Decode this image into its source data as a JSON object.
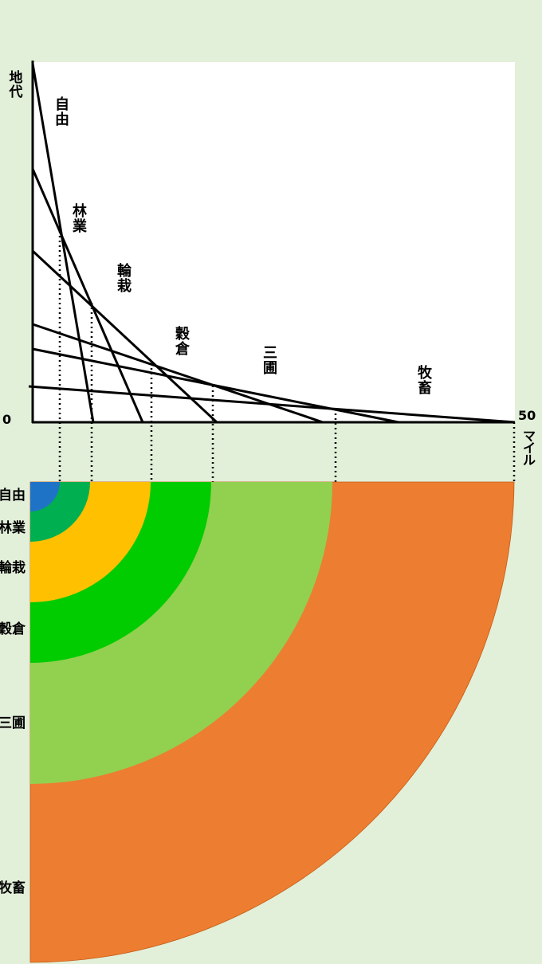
{
  "axis": {
    "y_label": "地代",
    "x_label": "マイル",
    "origin_label": "0",
    "x_max_label": "50"
  },
  "crops": [
    {
      "id": "jiyu",
      "label": "自由",
      "color": "#1f73c7"
    },
    {
      "id": "ringyo",
      "label": "林業",
      "color": "#00b050"
    },
    {
      "id": "rinsai",
      "label": "輪栽",
      "color": "#ffc000"
    },
    {
      "id": "kokuso",
      "label": "穀倉",
      "color": "#00cc00"
    },
    {
      "id": "sanpo",
      "label": "三圃",
      "color": "#92d050"
    },
    {
      "id": "bokuchiku",
      "label": "牧畜",
      "color": "#ed7d31"
    }
  ]
}
